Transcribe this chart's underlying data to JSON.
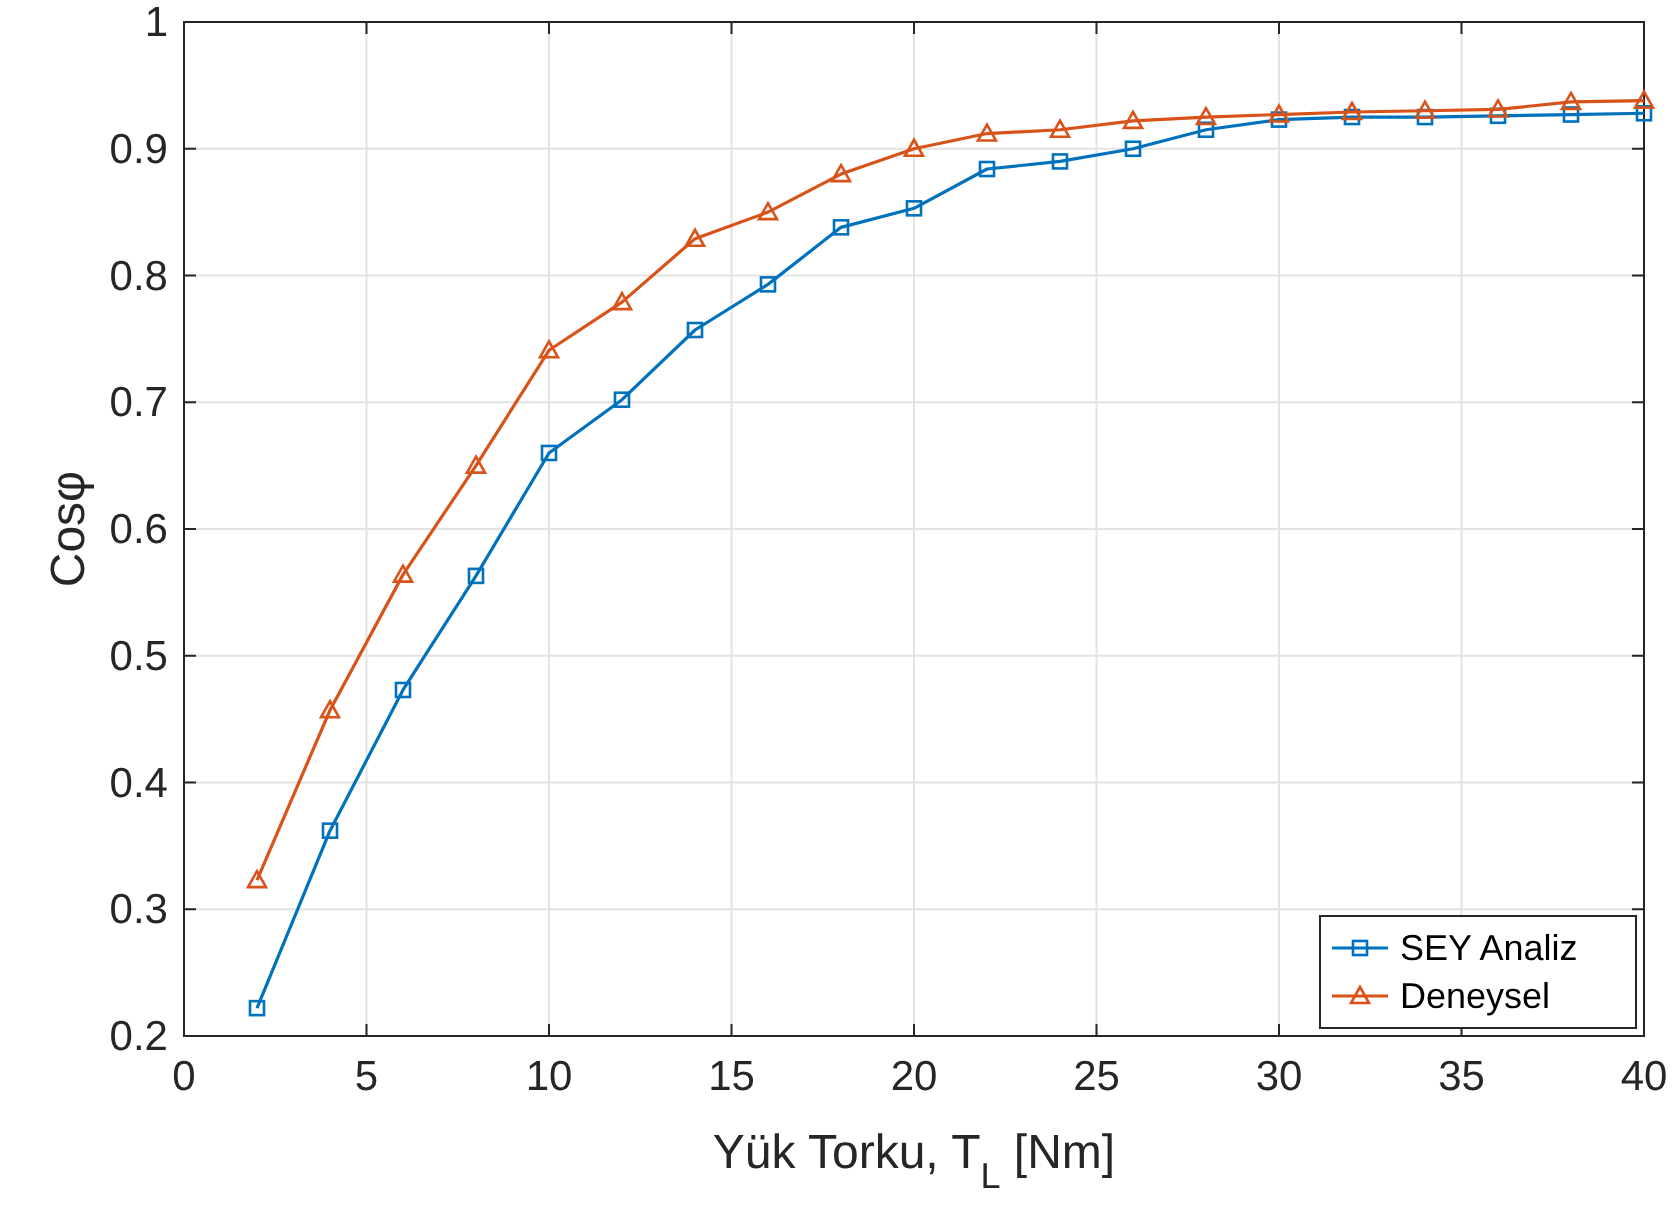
{
  "chart_data": {
    "type": "line",
    "xlabel": "Yük Torku, T$_{L}$ [Nm]",
    "ylabel": "Cosφ",
    "x": [
      2,
      4,
      6,
      8,
      10,
      12,
      14,
      16,
      18,
      20,
      22,
      24,
      26,
      28,
      30,
      32,
      34,
      36,
      38,
      40
    ],
    "xlim": [
      0,
      40
    ],
    "xticks": [
      0,
      5,
      10,
      15,
      20,
      25,
      30,
      35,
      40
    ],
    "ylim": [
      0.2,
      1
    ],
    "yticks": [
      0.2,
      0.3,
      0.4,
      0.5,
      0.6,
      0.7,
      0.8,
      0.9,
      1
    ],
    "grid": true,
    "legend": "bottom right",
    "line_style": "solid",
    "series": [
      {
        "name": "SEY Analiz",
        "color": "#0072bd",
        "marker": "square",
        "values": [
          0.222,
          0.362,
          0.473,
          0.563,
          0.66,
          0.702,
          0.757,
          0.793,
          0.838,
          0.853,
          0.884,
          0.89,
          0.9,
          0.915,
          0.923,
          0.925,
          0.925,
          0.926,
          0.927,
          0.928
        ]
      },
      {
        "name": "Deneysel",
        "color": "#d95319",
        "marker": "triangle",
        "values": [
          0.323,
          0.457,
          0.564,
          0.65,
          0.741,
          0.779,
          0.829,
          0.85,
          0.88,
          0.9,
          0.912,
          0.915,
          0.922,
          0.925,
          0.927,
          0.929,
          0.93,
          0.931,
          0.937,
          0.938
        ]
      }
    ]
  }
}
